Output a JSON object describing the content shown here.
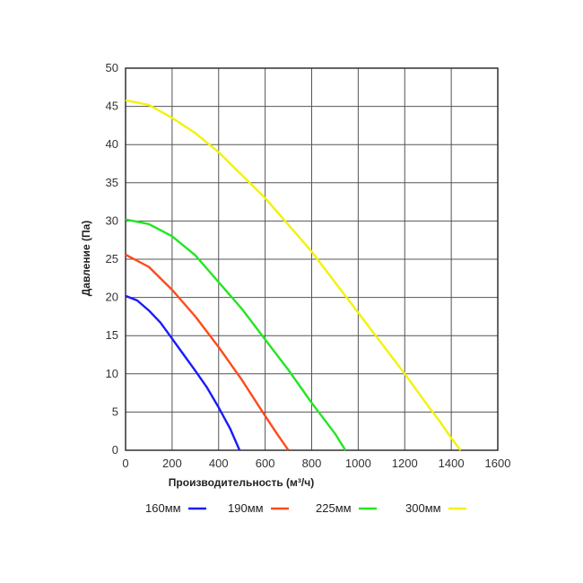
{
  "chart_data": {
    "type": "line",
    "xlabel": "Производительность (м³/ч)",
    "ylabel": "Давление (Па)",
    "xlim": [
      0,
      1600
    ],
    "ylim": [
      0,
      50
    ],
    "xticks": [
      0,
      200,
      400,
      600,
      800,
      1000,
      1200,
      1400,
      1600
    ],
    "yticks": [
      0,
      5,
      10,
      15,
      20,
      25,
      30,
      35,
      40,
      45,
      50
    ],
    "grid": true,
    "legend_position": "bottom",
    "series": [
      {
        "name": "160мм",
        "color": "#1a1aff",
        "x": [
          0,
          50,
          100,
          150,
          200,
          250,
          300,
          350,
          400,
          450,
          490
        ],
        "y": [
          20.2,
          19.6,
          18.3,
          16.7,
          14.6,
          12.5,
          10.4,
          8.2,
          5.6,
          2.8,
          0
        ]
      },
      {
        "name": "190мм",
        "color": "#ff4a1a",
        "x": [
          0,
          100,
          200,
          300,
          400,
          500,
          600,
          650,
          700
        ],
        "y": [
          25.6,
          24.0,
          21.0,
          17.5,
          13.5,
          9.2,
          4.5,
          2.2,
          0
        ]
      },
      {
        "name": "225мм",
        "color": "#22e622",
        "x": [
          0,
          100,
          200,
          300,
          400,
          500,
          600,
          700,
          800,
          900,
          945
        ],
        "y": [
          30.2,
          29.6,
          28.0,
          25.5,
          22.0,
          18.5,
          14.5,
          10.5,
          6.2,
          2.2,
          0
        ]
      },
      {
        "name": "300мм",
        "color": "#f2f20a",
        "x": [
          0,
          100,
          200,
          300,
          400,
          500,
          600,
          700,
          800,
          900,
          1000,
          1100,
          1200,
          1300,
          1350,
          1400,
          1440
        ],
        "y": [
          45.8,
          45.2,
          43.5,
          41.5,
          39.0,
          36.0,
          33.0,
          29.5,
          26.0,
          22.0,
          18.0,
          14.0,
          10.0,
          5.8,
          3.8,
          1.6,
          0
        ]
      }
    ]
  }
}
